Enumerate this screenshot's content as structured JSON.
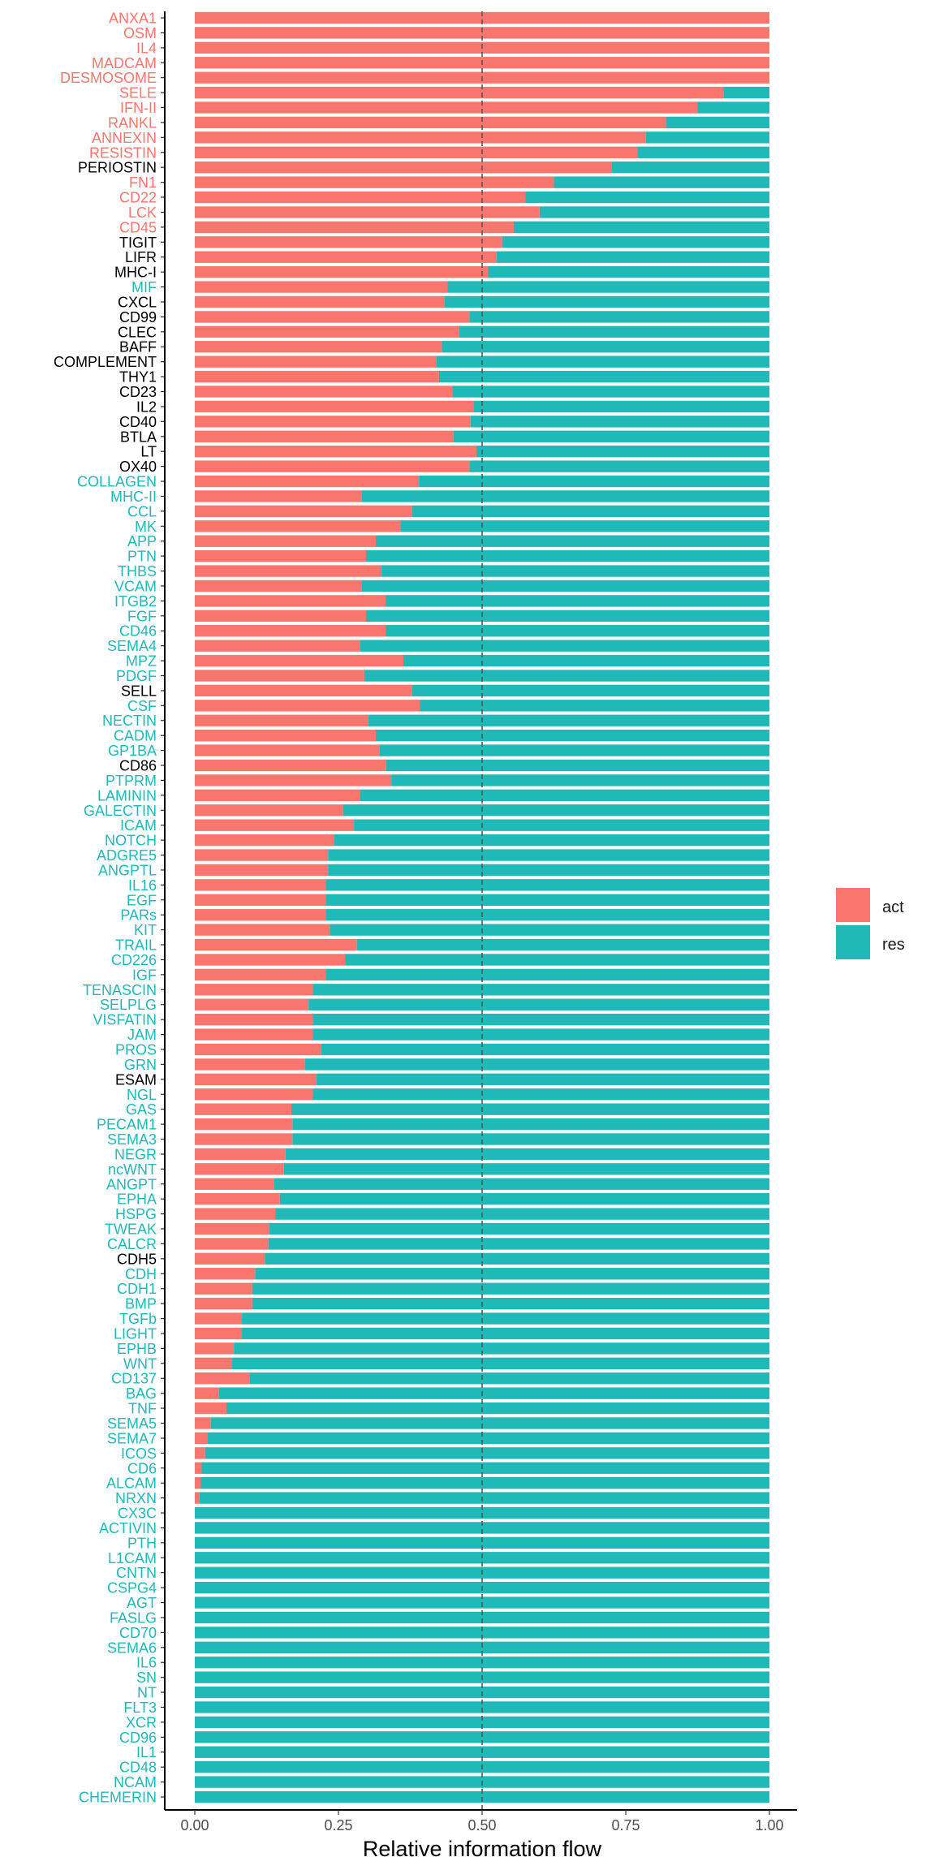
{
  "chart_data": {
    "type": "bar",
    "orientation": "horizontal",
    "stacked": "fill",
    "xlabel": "Relative information flow",
    "ylabel": "",
    "xlim": [
      0,
      1
    ],
    "x_ticks": [
      0,
      0.25,
      0.5,
      0.75,
      1
    ],
    "x_tick_labels": [
      "0.00",
      "0.25",
      "0.50",
      "0.75",
      "1.00"
    ],
    "reference_line": 0.5,
    "grid": false,
    "legend_position": "right",
    "series": [
      {
        "name": "act",
        "color": "#F8766D"
      },
      {
        "name": "res",
        "color": "#1FBAB8"
      }
    ],
    "label_colors": {
      "act": "#F8766D",
      "res": "#1FBAB8",
      "neutral": "#000000"
    },
    "categories": [
      {
        "label": "ANXA1",
        "act": 1.0,
        "group": "act"
      },
      {
        "label": "OSM",
        "act": 1.0,
        "group": "act"
      },
      {
        "label": "IL4",
        "act": 1.0,
        "group": "act"
      },
      {
        "label": "MADCAM",
        "act": 1.0,
        "group": "act"
      },
      {
        "label": "DESMOSOME",
        "act": 1.0,
        "group": "act"
      },
      {
        "label": "SELE",
        "act": 0.92,
        "group": "act"
      },
      {
        "label": "IFN-II",
        "act": 0.875,
        "group": "act"
      },
      {
        "label": "RANKL",
        "act": 0.82,
        "group": "act"
      },
      {
        "label": "ANNEXIN",
        "act": 0.785,
        "group": "act"
      },
      {
        "label": "RESISTIN",
        "act": 0.77,
        "group": "act"
      },
      {
        "label": "PERIOSTIN",
        "act": 0.725,
        "group": "neutral"
      },
      {
        "label": "FN1",
        "act": 0.625,
        "group": "act"
      },
      {
        "label": "CD22",
        "act": 0.575,
        "group": "act"
      },
      {
        "label": "LCK",
        "act": 0.6,
        "group": "act"
      },
      {
        "label": "CD45",
        "act": 0.555,
        "group": "act"
      },
      {
        "label": "TIGIT",
        "act": 0.535,
        "group": "neutral"
      },
      {
        "label": "LIFR",
        "act": 0.525,
        "group": "neutral"
      },
      {
        "label": "MHC-I",
        "act": 0.51,
        "group": "neutral"
      },
      {
        "label": "MIF",
        "act": 0.44,
        "group": "res"
      },
      {
        "label": "CXCL",
        "act": 0.435,
        "group": "neutral"
      },
      {
        "label": "CD99",
        "act": 0.478,
        "group": "neutral"
      },
      {
        "label": "CLEC",
        "act": 0.46,
        "group": "neutral"
      },
      {
        "label": "BAFF",
        "act": 0.43,
        "group": "neutral"
      },
      {
        "label": "COMPLEMENT",
        "act": 0.42,
        "group": "neutral"
      },
      {
        "label": "THY1",
        "act": 0.425,
        "group": "neutral"
      },
      {
        "label": "CD23",
        "act": 0.448,
        "group": "neutral"
      },
      {
        "label": "IL2",
        "act": 0.485,
        "group": "neutral"
      },
      {
        "label": "CD40",
        "act": 0.48,
        "group": "neutral"
      },
      {
        "label": "BTLA",
        "act": 0.45,
        "group": "neutral"
      },
      {
        "label": "LT",
        "act": 0.49,
        "group": "neutral"
      },
      {
        "label": "OX40",
        "act": 0.478,
        "group": "neutral"
      },
      {
        "label": "COLLAGEN",
        "act": 0.39,
        "group": "res"
      },
      {
        "label": "MHC-II",
        "act": 0.29,
        "group": "res"
      },
      {
        "label": "CCL",
        "act": 0.378,
        "group": "res"
      },
      {
        "label": "MK",
        "act": 0.358,
        "group": "res"
      },
      {
        "label": "APP",
        "act": 0.315,
        "group": "res"
      },
      {
        "label": "PTN",
        "act": 0.298,
        "group": "res"
      },
      {
        "label": "THBS",
        "act": 0.325,
        "group": "res"
      },
      {
        "label": "VCAM",
        "act": 0.29,
        "group": "res"
      },
      {
        "label": "ITGB2",
        "act": 0.332,
        "group": "res"
      },
      {
        "label": "FGF",
        "act": 0.298,
        "group": "res"
      },
      {
        "label": "CD46",
        "act": 0.332,
        "group": "res"
      },
      {
        "label": "SEMA4",
        "act": 0.288,
        "group": "res"
      },
      {
        "label": "MPZ",
        "act": 0.363,
        "group": "res"
      },
      {
        "label": "PDGF",
        "act": 0.295,
        "group": "res"
      },
      {
        "label": "SELL",
        "act": 0.378,
        "group": "neutral"
      },
      {
        "label": "CSF",
        "act": 0.392,
        "group": "res"
      },
      {
        "label": "NECTIN",
        "act": 0.302,
        "group": "res"
      },
      {
        "label": "CADM",
        "act": 0.315,
        "group": "res"
      },
      {
        "label": "GP1BA",
        "act": 0.322,
        "group": "res"
      },
      {
        "label": "CD86",
        "act": 0.333,
        "group": "neutral"
      },
      {
        "label": "PTPRM",
        "act": 0.342,
        "group": "res"
      },
      {
        "label": "LAMININ",
        "act": 0.287,
        "group": "res"
      },
      {
        "label": "GALECTIN",
        "act": 0.258,
        "group": "res"
      },
      {
        "label": "ICAM",
        "act": 0.277,
        "group": "res"
      },
      {
        "label": "NOTCH",
        "act": 0.242,
        "group": "res"
      },
      {
        "label": "ADGRE5",
        "act": 0.232,
        "group": "res"
      },
      {
        "label": "ANGPTL",
        "act": 0.232,
        "group": "res"
      },
      {
        "label": "IL16",
        "act": 0.228,
        "group": "res"
      },
      {
        "label": "EGF",
        "act": 0.228,
        "group": "res"
      },
      {
        "label": "PARs",
        "act": 0.228,
        "group": "res"
      },
      {
        "label": "KIT",
        "act": 0.235,
        "group": "res"
      },
      {
        "label": "TRAIL",
        "act": 0.282,
        "group": "res"
      },
      {
        "label": "CD226",
        "act": 0.262,
        "group": "res"
      },
      {
        "label": "IGF",
        "act": 0.228,
        "group": "res"
      },
      {
        "label": "TENASCIN",
        "act": 0.205,
        "group": "res"
      },
      {
        "label": "SELPLG",
        "act": 0.198,
        "group": "res"
      },
      {
        "label": "VISFATIN",
        "act": 0.205,
        "group": "res"
      },
      {
        "label": "JAM",
        "act": 0.205,
        "group": "res"
      },
      {
        "label": "PROS",
        "act": 0.22,
        "group": "res"
      },
      {
        "label": "GRN",
        "act": 0.192,
        "group": "res"
      },
      {
        "label": "ESAM",
        "act": 0.212,
        "group": "neutral"
      },
      {
        "label": "NGL",
        "act": 0.205,
        "group": "res"
      },
      {
        "label": "GAS",
        "act": 0.168,
        "group": "res"
      },
      {
        "label": "PECAM1",
        "act": 0.17,
        "group": "res"
      },
      {
        "label": "SEMA3",
        "act": 0.17,
        "group": "res"
      },
      {
        "label": "NEGR",
        "act": 0.158,
        "group": "res"
      },
      {
        "label": "ncWNT",
        "act": 0.155,
        "group": "res"
      },
      {
        "label": "ANGPT",
        "act": 0.138,
        "group": "res"
      },
      {
        "label": "EPHA",
        "act": 0.148,
        "group": "res"
      },
      {
        "label": "HSPG",
        "act": 0.14,
        "group": "res"
      },
      {
        "label": "TWEAK",
        "act": 0.13,
        "group": "res"
      },
      {
        "label": "CALCR",
        "act": 0.128,
        "group": "res"
      },
      {
        "label": "CDH5",
        "act": 0.122,
        "group": "neutral"
      },
      {
        "label": "CDH",
        "act": 0.105,
        "group": "res"
      },
      {
        "label": "CDH1",
        "act": 0.1,
        "group": "res"
      },
      {
        "label": "BMP",
        "act": 0.1,
        "group": "res"
      },
      {
        "label": "TGFb",
        "act": 0.082,
        "group": "res"
      },
      {
        "label": "LIGHT",
        "act": 0.082,
        "group": "res"
      },
      {
        "label": "EPHB",
        "act": 0.068,
        "group": "res"
      },
      {
        "label": "WNT",
        "act": 0.065,
        "group": "res"
      },
      {
        "label": "CD137",
        "act": 0.095,
        "group": "res"
      },
      {
        "label": "BAG",
        "act": 0.042,
        "group": "res"
      },
      {
        "label": "TNF",
        "act": 0.055,
        "group": "res"
      },
      {
        "label": "SEMA5",
        "act": 0.028,
        "group": "res"
      },
      {
        "label": "SEMA7",
        "act": 0.022,
        "group": "res"
      },
      {
        "label": "ICOS",
        "act": 0.018,
        "group": "res"
      },
      {
        "label": "CD6",
        "act": 0.012,
        "group": "res"
      },
      {
        "label": "ALCAM",
        "act": 0.01,
        "group": "res"
      },
      {
        "label": "NRXN",
        "act": 0.008,
        "group": "res"
      },
      {
        "label": "CX3C",
        "act": 0.0,
        "group": "res"
      },
      {
        "label": "ACTIVIN",
        "act": 0.0,
        "group": "res"
      },
      {
        "label": "PTH",
        "act": 0.0,
        "group": "res"
      },
      {
        "label": "L1CAM",
        "act": 0.0,
        "group": "res"
      },
      {
        "label": "CNTN",
        "act": 0.0,
        "group": "res"
      },
      {
        "label": "CSPG4",
        "act": 0.0,
        "group": "res"
      },
      {
        "label": "AGT",
        "act": 0.0,
        "group": "res"
      },
      {
        "label": "FASLG",
        "act": 0.0,
        "group": "res"
      },
      {
        "label": "CD70",
        "act": 0.0,
        "group": "res"
      },
      {
        "label": "SEMA6",
        "act": 0.0,
        "group": "res"
      },
      {
        "label": "IL6",
        "act": 0.0,
        "group": "res"
      },
      {
        "label": "SN",
        "act": 0.0,
        "group": "res"
      },
      {
        "label": "NT",
        "act": 0.0,
        "group": "res"
      },
      {
        "label": "FLT3",
        "act": 0.0,
        "group": "res"
      },
      {
        "label": "XCR",
        "act": 0.0,
        "group": "res"
      },
      {
        "label": "CD96",
        "act": 0.0,
        "group": "res"
      },
      {
        "label": "IL1",
        "act": 0.0,
        "group": "res"
      },
      {
        "label": "CD48",
        "act": 0.0,
        "group": "res"
      },
      {
        "label": "NCAM",
        "act": 0.0,
        "group": "res"
      },
      {
        "label": "CHEMERIN",
        "act": 0.0,
        "group": "res"
      }
    ]
  }
}
